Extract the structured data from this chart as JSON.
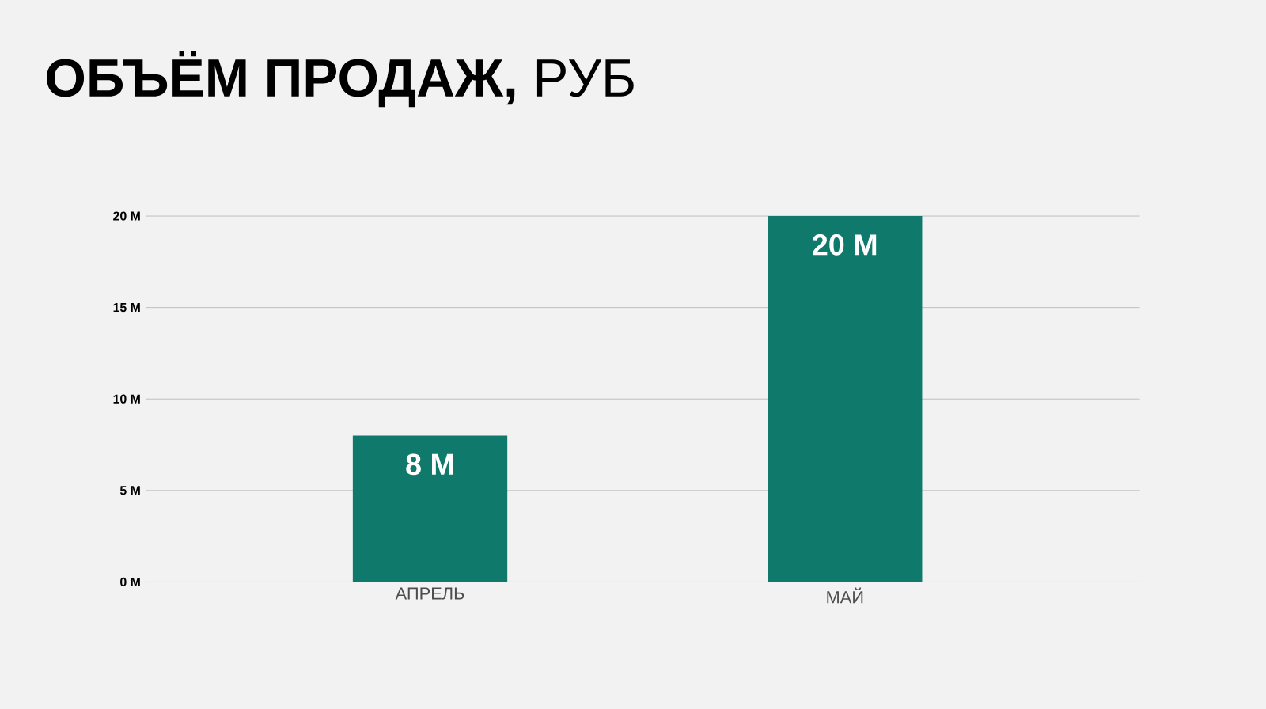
{
  "chart_data": {
    "type": "bar",
    "title": "**ОБЪЁМ ПРОДАЖ,** РУБ",
    "categories": [
      "АПРЕЛЬ",
      "МАЙ"
    ],
    "values": [
      8,
      20
    ],
    "value_labels": [
      "8 M",
      "20 M"
    ],
    "color": "#0f7a6c",
    "ylim": [
      0,
      20
    ],
    "yticks": [
      {
        "value": 0,
        "label": "0 M"
      },
      {
        "value": 5,
        "label": "5 M"
      },
      {
        "value": 10,
        "label": "10 M"
      },
      {
        "value": 15,
        "label": "15 M"
      },
      {
        "value": 20,
        "label": "20 M"
      }
    ],
    "grid": "y"
  }
}
